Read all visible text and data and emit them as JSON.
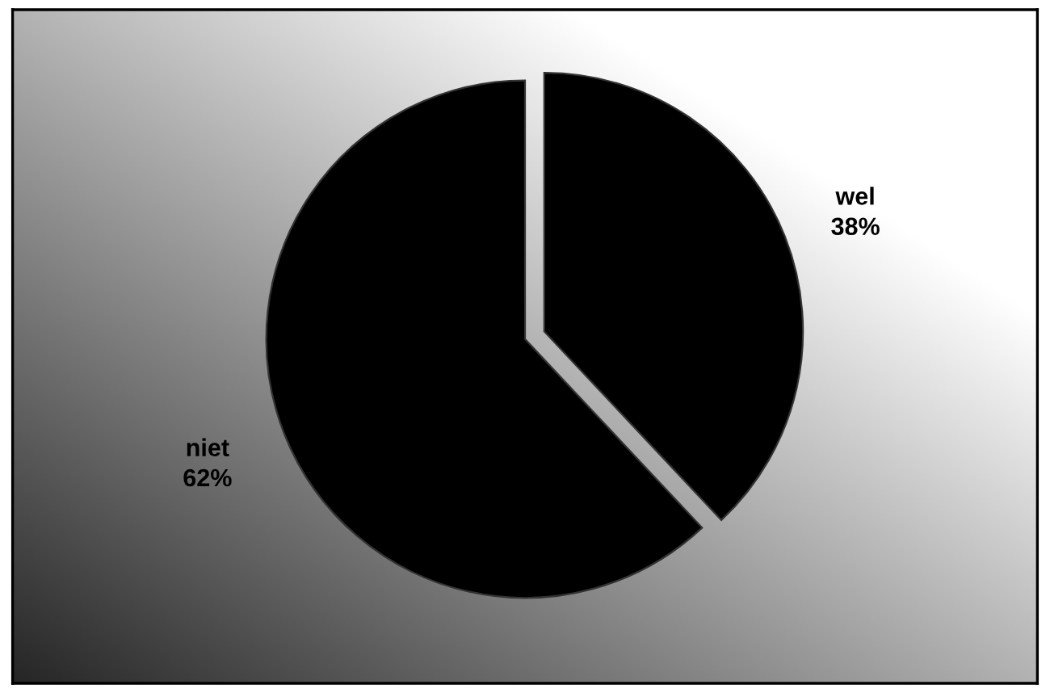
{
  "chart_data": {
    "type": "pie",
    "categories": [
      "wel",
      "niet"
    ],
    "values": [
      38,
      62
    ],
    "colors": [
      "#000000",
      "#000000"
    ],
    "value_labels": [
      "38%",
      "62%"
    ],
    "legend": false
  }
}
